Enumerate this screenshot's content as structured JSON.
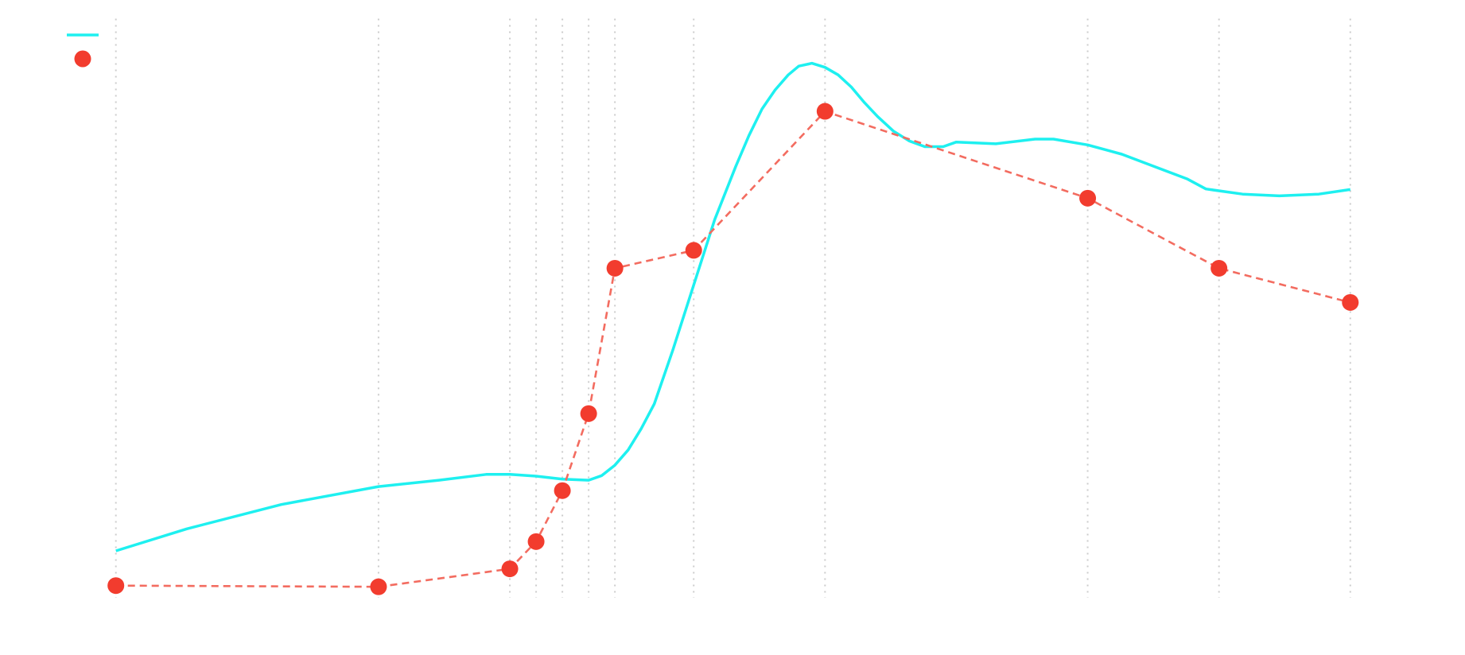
{
  "chart_data": {
    "type": "line",
    "legend": "upper left",
    "grid": true,
    "xlim": [
      0,
      47
    ],
    "ylim": [
      0,
      100
    ],
    "xticks": [
      0,
      10,
      15,
      16,
      17,
      18,
      19,
      22,
      27,
      37,
      42,
      47
    ],
    "series": [
      {
        "color": "#1ef0f0",
        "style": "solid",
        "x": [
          0,
          2.7,
          6.3,
          10,
          12.3,
          14.1,
          15,
          16,
          17,
          18,
          18.5,
          19,
          19.5,
          20,
          20.5,
          21.2,
          22,
          22.8,
          23.6,
          24.1,
          24.6,
          25.1,
          25.6,
          26,
          26.5,
          27,
          27.5,
          28,
          28.5,
          29,
          29.6,
          30.2,
          30.8,
          31.5,
          32,
          33.5,
          35,
          35.7,
          37,
          38.3,
          39.7,
          40.8,
          41.5,
          42.9,
          44.3,
          45.8,
          47
        ],
        "values": [
          8.1,
          11.9,
          16.1,
          19.2,
          20.3,
          21.3,
          21.3,
          21.0,
          20.5,
          20.3,
          21.1,
          22.9,
          25.5,
          29.2,
          33.5,
          42.7,
          54.0,
          65.3,
          74.5,
          79.8,
          84.4,
          87.7,
          90.3,
          91.8,
          92.3,
          91.6,
          90.3,
          88.2,
          85.5,
          83.1,
          80.6,
          78.9,
          77.9,
          77.9,
          78.7,
          78.4,
          79.2,
          79.2,
          78.2,
          76.6,
          74.2,
          72.3,
          70.6,
          69.7,
          69.4,
          69.7,
          70.5
        ]
      },
      {
        "color": "#f23c2e",
        "style": "dashed-markers",
        "x": [
          0,
          10,
          15,
          16,
          17,
          18,
          19,
          22,
          27,
          37,
          42,
          47
        ],
        "values": [
          2.1,
          1.9,
          5.0,
          9.7,
          18.5,
          31.8,
          56.9,
          60.0,
          84.0,
          69.0,
          56.9,
          51.0
        ]
      }
    ]
  }
}
